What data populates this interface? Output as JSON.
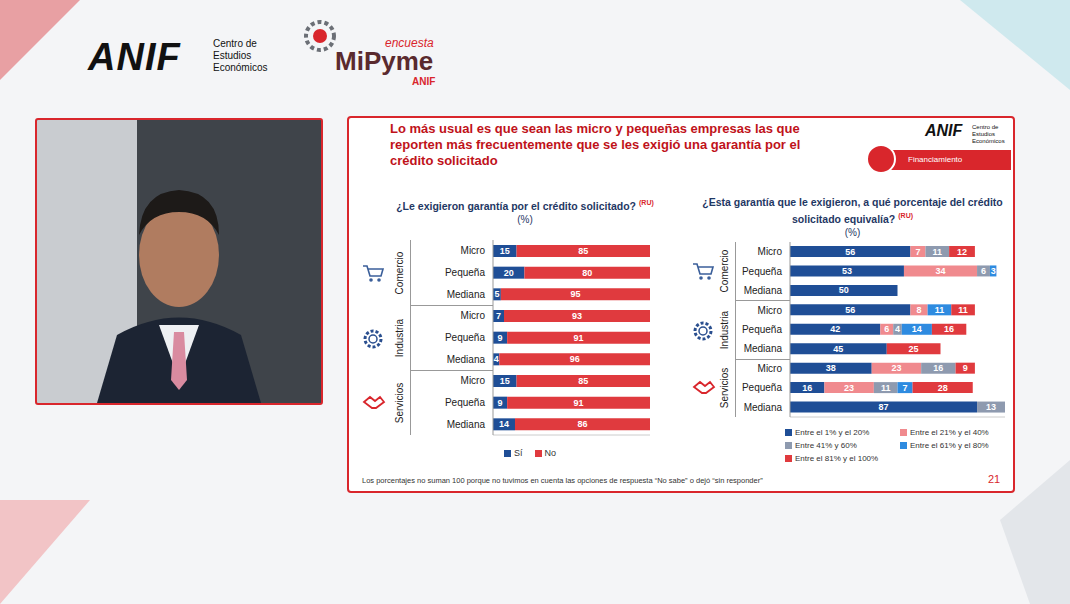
{
  "header": {
    "logo": {
      "name": "ANIF",
      "text": "Centro de Estudios Económicos"
    },
    "survey_logo": {
      "top": "encuesta",
      "name": "MiPyme",
      "bottom": "ANIF"
    }
  },
  "slide": {
    "title": "Lo más usual es que sean las micro y pequeñas empresas las que reporten más frecuentemente que se les exigió una garantía por el crédito solicitado",
    "logo": {
      "name": "ANIF",
      "text": "Centro de Estudios Económicos"
    },
    "section": "Financiamiento",
    "footnote": "Los porcentajes no suman 100 porque no tuvimos en cuenta las opciones de respuesta “No sabe” o dejó “sin responder”",
    "page": "21"
  },
  "chart_data": [
    {
      "type": "bar",
      "orientation": "horizontal",
      "stacked": true,
      "data_labels": true,
      "tick_labels": false,
      "grid": false,
      "legend": "bottom",
      "title": "¿Le exigieron garantía por el crédito solicitado?",
      "title_note": "(RU)",
      "subtitle": "(%)",
      "groups": [
        "Comercio",
        "Industria",
        "Servicios"
      ],
      "categories": [
        "Micro",
        "Pequeña",
        "Mediana",
        "Micro",
        "Pequeña",
        "Mediana",
        "Micro",
        "Pequeña",
        "Mediana"
      ],
      "xlim": [
        0,
        100
      ],
      "series": [
        {
          "name": "Sí",
          "color": "#1F4E96",
          "values": [
            15,
            20,
            5,
            7,
            9,
            4,
            15,
            9,
            14
          ]
        },
        {
          "name": "No",
          "color": "#E03A3E",
          "values": [
            85,
            80,
            95,
            93,
            91,
            96,
            85,
            91,
            86
          ]
        }
      ]
    },
    {
      "type": "bar",
      "orientation": "horizontal",
      "stacked": true,
      "data_labels": true,
      "tick_labels": false,
      "grid": false,
      "legend": "bottom",
      "title": "¿Esta garantía que le exigieron, a qué porcentaje del crédito solicitado equivalía?",
      "title_note": "(RU)",
      "subtitle": "(%)",
      "groups": [
        "Comercio",
        "Industria",
        "Servicios"
      ],
      "categories": [
        "Micro",
        "Pequeña",
        "Mediana",
        "Micro",
        "Pequeña",
        "Mediana",
        "Micro",
        "Pequeña",
        "Mediana"
      ],
      "xlim": [
        0,
        100
      ],
      "series": [
        {
          "name": "Entre el 1% y el 20%",
          "color": "#1F4E96",
          "values": [
            56,
            53,
            50,
            56,
            42,
            45,
            38,
            16,
            87
          ]
        },
        {
          "name": "Entre el 21% y el 40%",
          "color": "#F08A8E",
          "values": [
            7,
            34,
            null,
            8,
            6,
            null,
            23,
            23,
            null
          ]
        },
        {
          "name": "Entre 41% y 60%",
          "color": "#8E9AAF",
          "values": [
            11,
            6,
            null,
            null,
            4,
            null,
            16,
            11,
            13
          ]
        },
        {
          "name": "Entre el 61% y el 80%",
          "color": "#2E8BE0",
          "values": [
            null,
            3,
            null,
            11,
            14,
            null,
            null,
            7,
            null
          ]
        },
        {
          "name": "Entre el 81% y el 100%",
          "color": "#E03A3E",
          "values": [
            12,
            null,
            null,
            11,
            16,
            25,
            9,
            28,
            null
          ]
        }
      ]
    }
  ]
}
